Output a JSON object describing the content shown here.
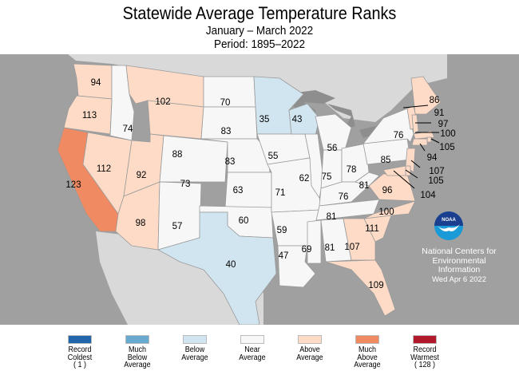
{
  "title": "Statewide Average Temperature Ranks",
  "subtitle": "January – March 2022",
  "period": "Period: 1895–2022",
  "colors": {
    "record_coldest": "#2166ac",
    "much_below": "#67a9cf",
    "below": "#d1e5f0",
    "near": "#f7f7f7",
    "above": "#fddbc7",
    "much_above": "#ef8a62",
    "record_warmest": "#b2182b",
    "ocean": "#a0a0a0",
    "land_outside": "#d9d9d9"
  },
  "states": [
    {
      "id": "WA",
      "rank": "94",
      "category": "above"
    },
    {
      "id": "OR",
      "rank": "113",
      "category": "above"
    },
    {
      "id": "CA",
      "rank": "123",
      "category": "much_above"
    },
    {
      "id": "ID",
      "rank": "74",
      "category": "near"
    },
    {
      "id": "NV",
      "rank": "112",
      "category": "above"
    },
    {
      "id": "MT",
      "rank": "102",
      "category": "above"
    },
    {
      "id": "WY",
      "rank": "88",
      "category": "above"
    },
    {
      "id": "UT",
      "rank": "92",
      "category": "above"
    },
    {
      "id": "AZ",
      "rank": "98",
      "category": "above"
    },
    {
      "id": "CO",
      "rank": "73",
      "category": "near"
    },
    {
      "id": "NM",
      "rank": "57",
      "category": "near"
    },
    {
      "id": "ND",
      "rank": "70",
      "category": "near"
    },
    {
      "id": "SD",
      "rank": "83",
      "category": "near"
    },
    {
      "id": "NE",
      "rank": "83",
      "category": "near"
    },
    {
      "id": "KS",
      "rank": "63",
      "category": "near"
    },
    {
      "id": "OK",
      "rank": "60",
      "category": "near"
    },
    {
      "id": "TX",
      "rank": "40",
      "category": "below"
    },
    {
      "id": "MN",
      "rank": "35",
      "category": "below"
    },
    {
      "id": "IA",
      "rank": "55",
      "category": "near"
    },
    {
      "id": "MO",
      "rank": "71",
      "category": "near"
    },
    {
      "id": "AR",
      "rank": "59",
      "category": "near"
    },
    {
      "id": "LA",
      "rank": "47",
      "category": "near"
    },
    {
      "id": "WI",
      "rank": "43",
      "category": "below"
    },
    {
      "id": "IL",
      "rank": "62",
      "category": "near"
    },
    {
      "id": "MI",
      "rank": "56",
      "category": "near"
    },
    {
      "id": "IN",
      "rank": "75",
      "category": "near"
    },
    {
      "id": "OH",
      "rank": "78",
      "category": "near"
    },
    {
      "id": "KY",
      "rank": "76",
      "category": "near"
    },
    {
      "id": "TN",
      "rank": "81",
      "category": "near"
    },
    {
      "id": "MS",
      "rank": "69",
      "category": "near"
    },
    {
      "id": "AL",
      "rank": "81",
      "category": "near"
    },
    {
      "id": "GA",
      "rank": "107",
      "category": "above"
    },
    {
      "id": "FL",
      "rank": "109",
      "category": "above"
    },
    {
      "id": "SC",
      "rank": "111",
      "category": "above"
    },
    {
      "id": "NC",
      "rank": "100",
      "category": "above"
    },
    {
      "id": "VA",
      "rank": "96",
      "category": "above"
    },
    {
      "id": "WV",
      "rank": "81",
      "category": "near"
    },
    {
      "id": "PA",
      "rank": "85",
      "category": "near"
    },
    {
      "id": "NY",
      "rank": "76",
      "category": "near"
    },
    {
      "id": "ME",
      "rank": "86",
      "category": "above"
    },
    {
      "id": "NH",
      "rank": "91",
      "category": "above"
    },
    {
      "id": "VT",
      "rank": "97",
      "category": "above"
    },
    {
      "id": "MA",
      "rank": "100",
      "category": "above"
    },
    {
      "id": "RI",
      "rank": "105",
      "category": "above"
    },
    {
      "id": "CT",
      "rank": "94",
      "category": "above"
    },
    {
      "id": "NJ",
      "rank": "107",
      "category": "above"
    },
    {
      "id": "DE",
      "rank": "105",
      "category": "above"
    },
    {
      "id": "MD",
      "rank": "104",
      "category": "above"
    }
  ],
  "credit": {
    "logo_text": "NOAA",
    "line1": "National Centers for",
    "line2": "Environmental",
    "line3": "Information",
    "date": "Wed Apr  6 2022"
  },
  "legend": [
    {
      "key": "record_coldest",
      "lines": [
        "Record",
        "Coldest",
        "( 1 )"
      ]
    },
    {
      "key": "much_below",
      "lines": [
        "Much",
        "Below",
        "Average"
      ]
    },
    {
      "key": "below",
      "lines": [
        "Below",
        "Average"
      ]
    },
    {
      "key": "near",
      "lines": [
        "Near",
        "Average"
      ]
    },
    {
      "key": "above",
      "lines": [
        "Above",
        "Average"
      ]
    },
    {
      "key": "much_above",
      "lines": [
        "Much",
        "Above",
        "Average"
      ]
    },
    {
      "key": "record_warmest",
      "lines": [
        "Record",
        "Warmest",
        "( 128 )"
      ]
    }
  ]
}
